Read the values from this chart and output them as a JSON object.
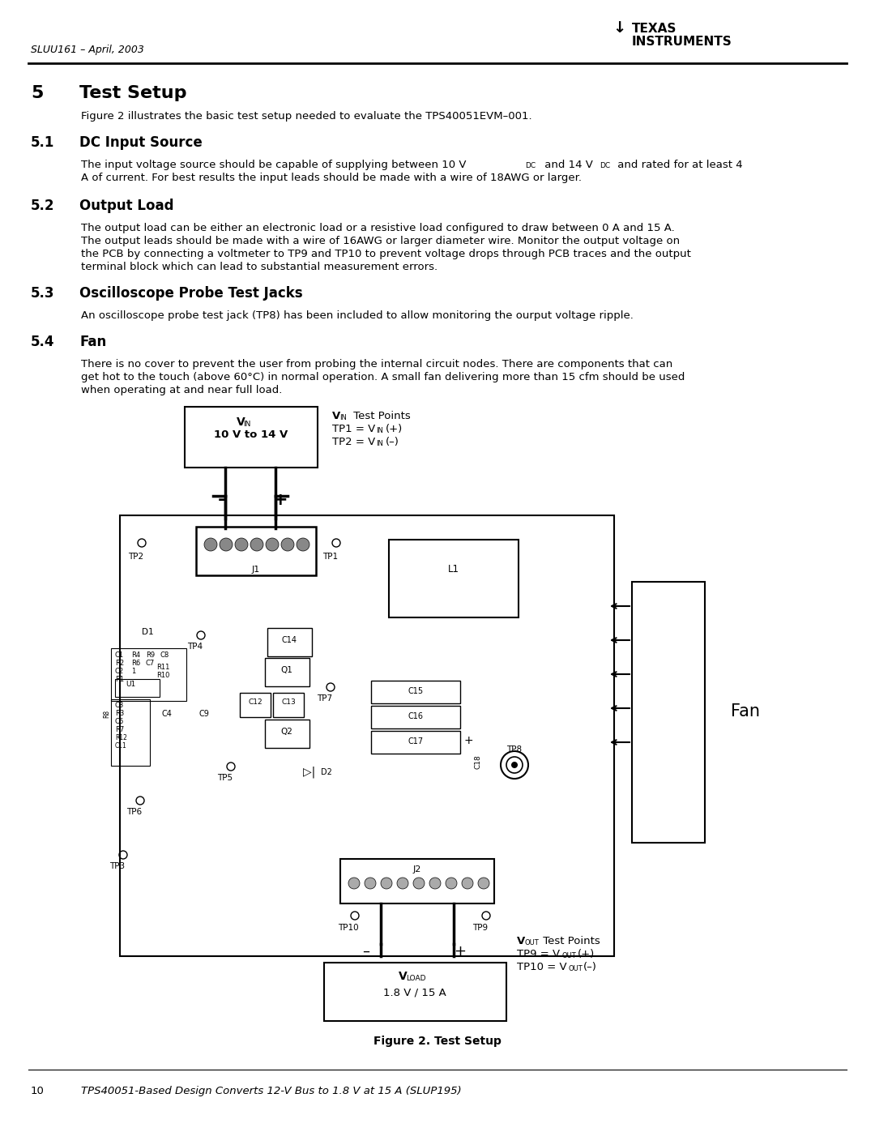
{
  "page_bg": "#ffffff",
  "header_doc_num": "SLUU161 – April, 2003",
  "fig_caption": "Figure 2. Test Setup",
  "footer_page": "10",
  "footer_text": "TPS40051-Based Design Converts 12-V Bus to 1.8 V at 15 A (SLUP195)"
}
